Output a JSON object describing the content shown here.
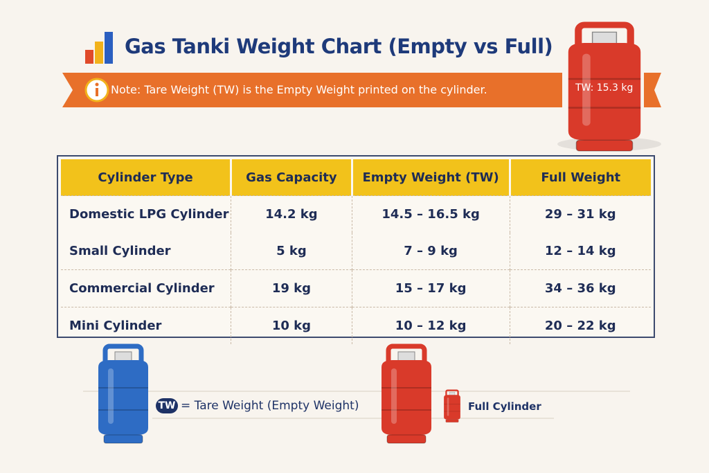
{
  "title": "Gas Tanki Weight Chart (Empty vs Full)",
  "note": "Note: Tare Weight (TW) is the Empty Weight printed on the cylinder.",
  "cylinder_label": "TW: 15.3 kg",
  "table": {
    "columns": [
      "Cylinder Type",
      "Gas Capacity",
      "Empty Weight (TW)",
      "Full Weight"
    ],
    "rows": [
      [
        "Domestic LPG Cylinder",
        "14.2 kg",
        "14.5 – 16.5 kg",
        "29 – 31 kg"
      ],
      [
        "Small Cylinder",
        "5 kg",
        "7 – 9 kg",
        "12 – 14 kg"
      ],
      [
        "Commercial Cylinder",
        "19 kg",
        "15 – 17 kg",
        "34 – 36 kg"
      ],
      [
        "Mini Cylinder",
        "10 kg",
        "10 – 12 kg",
        "20 – 22 kg"
      ]
    ]
  },
  "legend": [
    {
      "badge": "TW",
      "text": "= Tare Weight (Empty Weight)"
    },
    {
      "text": "Full Cylinder"
    }
  ]
}
